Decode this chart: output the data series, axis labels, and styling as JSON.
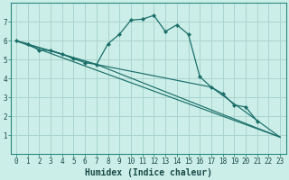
{
  "title": "",
  "xlabel": "Humidex (Indice chaleur)",
  "bg_color": "#cceee8",
  "line_color": "#1a6e6a",
  "grid_color": "#aad4ce",
  "border_color": "#2a8a80",
  "xlim": [
    -0.5,
    23.5
  ],
  "ylim": [
    0,
    8
  ],
  "xticks": [
    0,
    1,
    2,
    3,
    4,
    5,
    6,
    7,
    8,
    9,
    10,
    11,
    12,
    13,
    14,
    15,
    16,
    17,
    18,
    19,
    20,
    21,
    22,
    23
  ],
  "yticks": [
    1,
    2,
    3,
    4,
    5,
    6,
    7
  ],
  "series": [
    {
      "x": [
        0,
        1,
        2,
        3,
        4,
        5,
        6,
        7,
        8,
        9,
        10,
        11,
        12,
        13,
        14,
        15,
        16,
        17,
        18,
        19,
        20,
        21
      ],
      "y": [
        6.0,
        5.85,
        5.5,
        5.5,
        5.3,
        5.05,
        4.85,
        4.75,
        5.85,
        6.35,
        7.1,
        7.15,
        7.35,
        6.5,
        6.85,
        6.35,
        4.1,
        3.55,
        3.2,
        2.6,
        2.5,
        1.75
      ],
      "has_markers": true
    },
    {
      "x": [
        0,
        23
      ],
      "y": [
        6.0,
        0.9
      ],
      "has_markers": false
    },
    {
      "x": [
        0,
        7,
        23
      ],
      "y": [
        6.0,
        4.75,
        0.9
      ],
      "has_markers": false
    },
    {
      "x": [
        0,
        4,
        7,
        17,
        23
      ],
      "y": [
        6.0,
        5.3,
        4.75,
        3.55,
        0.9
      ],
      "has_markers": false
    }
  ],
  "tick_fontsize": 5.5,
  "xlabel_fontsize": 7,
  "xlabel_fontweight": "bold"
}
